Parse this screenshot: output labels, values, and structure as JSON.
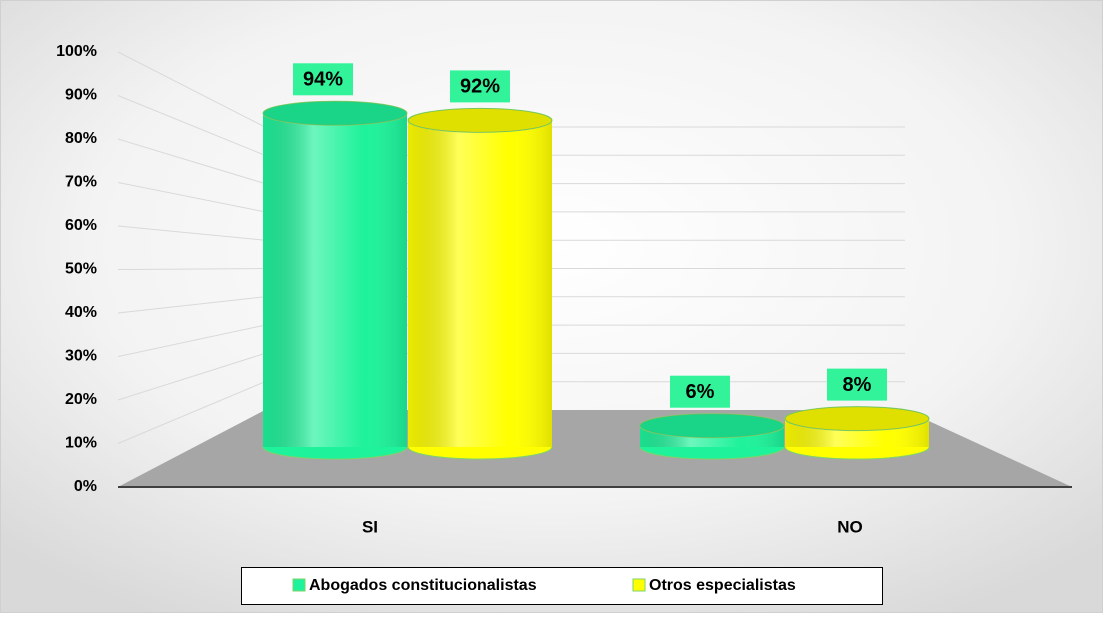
{
  "chart_data": {
    "type": "bar3d",
    "categories": [
      "SI",
      "NO"
    ],
    "series": [
      {
        "name": "Abogados constitucionalistas",
        "color": "#1ef29a",
        "values": [
          94,
          6
        ],
        "value_labels": [
          "94%",
          "6%"
        ]
      },
      {
        "name": "Otros especialistas",
        "color": "#ffff00",
        "values": [
          92,
          8
        ],
        "value_labels": [
          "92%",
          "8%"
        ]
      }
    ],
    "ylim": [
      0,
      100
    ],
    "yticks": [
      {
        "value": 0,
        "label": "0%"
      },
      {
        "value": 10,
        "label": "10%"
      },
      {
        "value": 20,
        "label": "20%"
      },
      {
        "value": 30,
        "label": "30%"
      },
      {
        "value": 40,
        "label": "40%"
      },
      {
        "value": 50,
        "label": "50%"
      },
      {
        "value": 60,
        "label": "60%"
      },
      {
        "value": 70,
        "label": "70%"
      },
      {
        "value": 80,
        "label": "80%"
      },
      {
        "value": 90,
        "label": "90%"
      },
      {
        "value": 100,
        "label": "100%"
      }
    ],
    "grid": true,
    "legend": "bottom",
    "label_background": "#33f39a"
  }
}
